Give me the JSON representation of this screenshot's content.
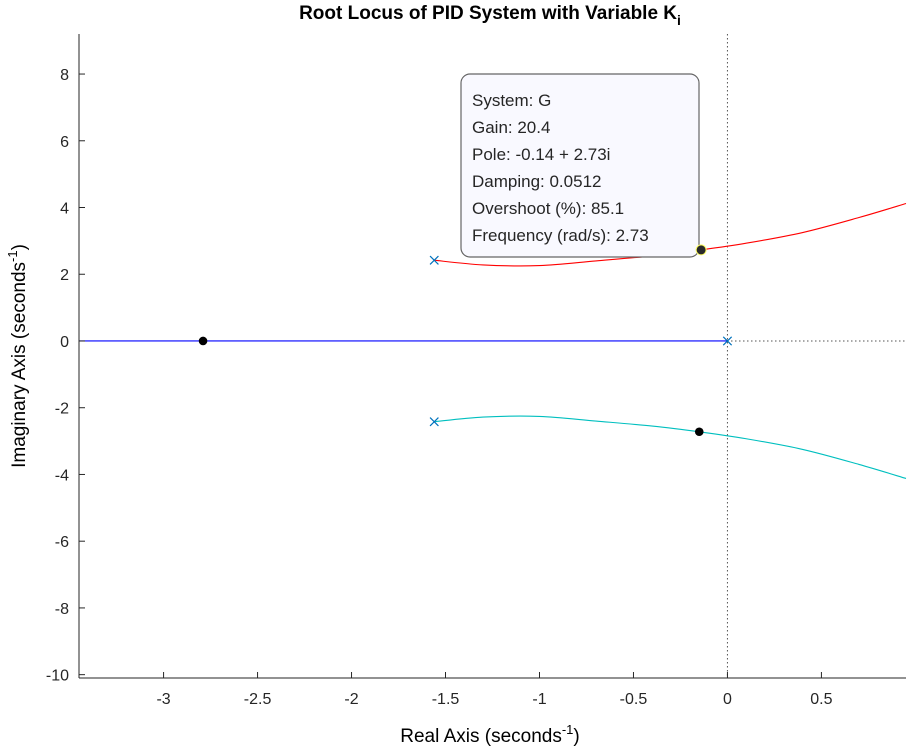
{
  "chart_data": {
    "type": "line",
    "title": {
      "text": "Root Locus of PID System with Variable K",
      "subscript": "i"
    },
    "xlabel": {
      "text": "Real Axis (seconds",
      "superscript": "-1",
      "close": ")"
    },
    "ylabel": {
      "text": "Imaginary Axis (seconds",
      "superscript": "-1",
      "close": ")"
    },
    "xlim": [
      -3.45,
      0.95
    ],
    "ylim": [
      -10.1,
      9.2
    ],
    "xticks": [
      -3,
      -2.5,
      -2,
      -1.5,
      -1,
      -0.5,
      0,
      0.5
    ],
    "xtick_labels": [
      "-3",
      "-2.5",
      "-2",
      "-1.5",
      "-1",
      "-0.5",
      "0",
      "0.5"
    ],
    "yticks": [
      -10,
      -8,
      -6,
      -4,
      -2,
      0,
      2,
      4,
      6,
      8
    ],
    "ytick_labels": [
      "-10",
      "-8",
      "-6",
      "-4",
      "-2",
      "0",
      "2",
      "4",
      "6",
      "8"
    ],
    "grid": false,
    "series": [
      {
        "color": "#ff0000",
        "points": [
          [
            -1.56,
            2.42
          ],
          [
            -1.3,
            2.28
          ],
          [
            -1.0,
            2.26
          ],
          [
            -0.7,
            2.4
          ],
          [
            -0.4,
            2.55
          ],
          [
            -0.14,
            2.73
          ],
          [
            0.1,
            2.93
          ],
          [
            0.4,
            3.25
          ],
          [
            0.7,
            3.7
          ],
          [
            0.95,
            4.12
          ]
        ]
      },
      {
        "color": "#00bfbf",
        "points": [
          [
            -1.56,
            -2.42
          ],
          [
            -1.3,
            -2.28
          ],
          [
            -1.0,
            -2.26
          ],
          [
            -0.7,
            -2.4
          ],
          [
            -0.4,
            -2.55
          ],
          [
            -0.14,
            -2.73
          ],
          [
            0.1,
            -2.93
          ],
          [
            0.4,
            -3.25
          ],
          [
            0.7,
            -3.7
          ],
          [
            0.95,
            -4.12
          ]
        ]
      },
      {
        "color": "#0000ff",
        "points": [
          [
            -3.45,
            0
          ],
          [
            0,
            0
          ]
        ]
      }
    ],
    "poles": [
      [
        -1.56,
        2.42
      ],
      [
        -1.56,
        -2.42
      ],
      [
        0,
        0
      ]
    ],
    "pole_color": "#0072bd",
    "markers": [
      [
        -2.79,
        0
      ],
      [
        -0.15,
        -2.72
      ]
    ],
    "selected_point": [
      -0.14,
      2.73
    ],
    "reference_lines": {
      "x": 0,
      "y": 0
    },
    "datatip": {
      "lines": [
        "System: G",
        "Gain: 20.4",
        "Pole: -0.14 + 2.73i",
        "Damping: 0.0512",
        "Overshoot (%): 85.1",
        "Frequency (rad/s): 2.73"
      ]
    }
  }
}
